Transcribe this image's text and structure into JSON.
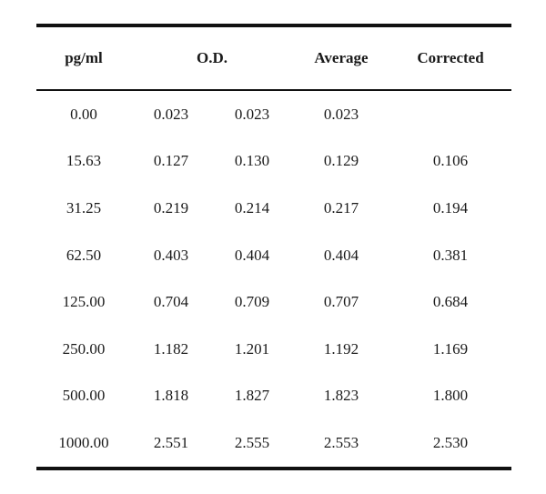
{
  "table": {
    "headers": {
      "pg": "pg/ml",
      "od": "O.D.",
      "average": "Average",
      "corrected": "Corrected"
    },
    "rows": [
      {
        "pg": "0.00",
        "od1": "0.023",
        "od2": "0.023",
        "average": "0.023",
        "corrected": ""
      },
      {
        "pg": "15.63",
        "od1": "0.127",
        "od2": "0.130",
        "average": "0.129",
        "corrected": "0.106"
      },
      {
        "pg": "31.25",
        "od1": "0.219",
        "od2": "0.214",
        "average": "0.217",
        "corrected": "0.194"
      },
      {
        "pg": "62.50",
        "od1": "0.403",
        "od2": "0.404",
        "average": "0.404",
        "corrected": "0.381"
      },
      {
        "pg": "125.00",
        "od1": "0.704",
        "od2": "0.709",
        "average": "0.707",
        "corrected": "0.684"
      },
      {
        "pg": "250.00",
        "od1": "1.182",
        "od2": "1.201",
        "average": "1.192",
        "corrected": "1.169"
      },
      {
        "pg": "500.00",
        "od1": "1.818",
        "od2": "1.827",
        "average": "1.823",
        "corrected": "1.800"
      },
      {
        "pg": "1000.00",
        "od1": "2.551",
        "od2": "2.555",
        "average": "2.553",
        "corrected": "2.530"
      }
    ]
  }
}
